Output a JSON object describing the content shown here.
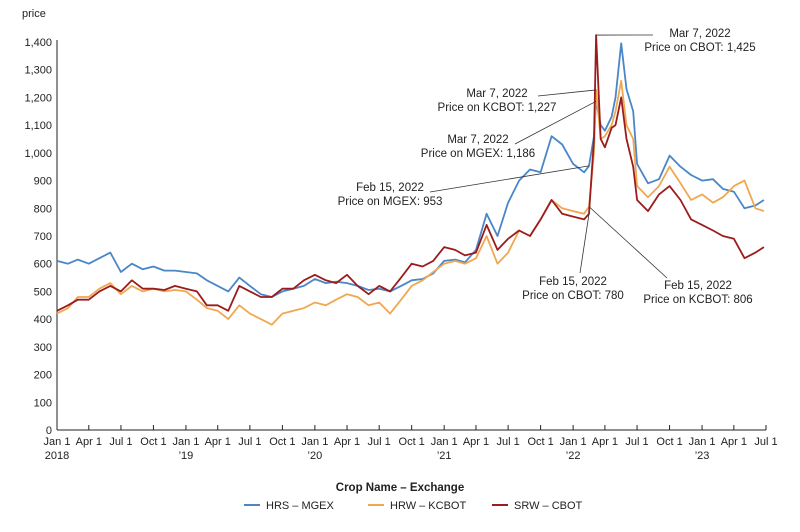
{
  "chart_data": {
    "type": "line",
    "ylabel": "price",
    "ylim": [
      0,
      1400
    ],
    "y_ticks": [
      "0",
      "100",
      "200",
      "300",
      "400",
      "500",
      "600",
      "700",
      "800",
      "900",
      "1,000",
      "1,100",
      "1,200",
      "1,300",
      "1,400"
    ],
    "xlim": [
      "2018-01-01",
      "2023-07-01"
    ],
    "x_ticks": [
      {
        "date": "2018-01-01",
        "label": "Jan 1",
        "year": "2018"
      },
      {
        "date": "2018-04-01",
        "label": "Apr 1",
        "year": ""
      },
      {
        "date": "2018-07-01",
        "label": "Jul 1",
        "year": ""
      },
      {
        "date": "2018-10-01",
        "label": "Oct 1",
        "year": ""
      },
      {
        "date": "2019-01-01",
        "label": "Jan 1",
        "year": "’19"
      },
      {
        "date": "2019-04-01",
        "label": "Apr 1",
        "year": ""
      },
      {
        "date": "2019-07-01",
        "label": "Jul 1",
        "year": ""
      },
      {
        "date": "2019-10-01",
        "label": "Oct 1",
        "year": ""
      },
      {
        "date": "2020-01-01",
        "label": "Jan 1",
        "year": "’20"
      },
      {
        "date": "2020-04-01",
        "label": "Apr 1",
        "year": ""
      },
      {
        "date": "2020-07-01",
        "label": "Jul 1",
        "year": ""
      },
      {
        "date": "2020-10-01",
        "label": "Oct 1",
        "year": ""
      },
      {
        "date": "2021-01-01",
        "label": "Jan 1",
        "year": "’21"
      },
      {
        "date": "2021-04-01",
        "label": "Apr 1",
        "year": ""
      },
      {
        "date": "2021-07-01",
        "label": "Jul 1",
        "year": ""
      },
      {
        "date": "2021-10-01",
        "label": "Oct 1",
        "year": ""
      },
      {
        "date": "2022-01-01",
        "label": "Jan 1",
        "year": "’22"
      },
      {
        "date": "2022-04-01",
        "label": "Apr 1",
        "year": ""
      },
      {
        "date": "2022-07-01",
        "label": "Jul 1",
        "year": ""
      },
      {
        "date": "2022-10-01",
        "label": "Oct 1",
        "year": ""
      },
      {
        "date": "2023-01-01",
        "label": "Jan 1",
        "year": "’23"
      },
      {
        "date": "2023-04-01",
        "label": "Apr 1",
        "year": ""
      },
      {
        "date": "2023-07-01",
        "label": "Jul 1",
        "year": ""
      }
    ],
    "grid": false,
    "legend_title": "Crop Name – Exchange",
    "legend_position": "bottom",
    "series": [
      {
        "name": "HRS – MGEX",
        "color": "#4a86c8",
        "points": [
          [
            "2018-01-01",
            610
          ],
          [
            "2018-02-01",
            600
          ],
          [
            "2018-03-01",
            615
          ],
          [
            "2018-04-01",
            600
          ],
          [
            "2018-05-01",
            620
          ],
          [
            "2018-06-01",
            640
          ],
          [
            "2018-07-01",
            570
          ],
          [
            "2018-08-01",
            600
          ],
          [
            "2018-09-01",
            580
          ],
          [
            "2018-10-01",
            590
          ],
          [
            "2018-11-01",
            575
          ],
          [
            "2018-12-01",
            575
          ],
          [
            "2019-01-01",
            570
          ],
          [
            "2019-02-01",
            565
          ],
          [
            "2019-03-01",
            540
          ],
          [
            "2019-04-01",
            520
          ],
          [
            "2019-05-01",
            500
          ],
          [
            "2019-06-01",
            550
          ],
          [
            "2019-07-01",
            520
          ],
          [
            "2019-08-01",
            490
          ],
          [
            "2019-09-01",
            480
          ],
          [
            "2019-10-01",
            500
          ],
          [
            "2019-11-01",
            510
          ],
          [
            "2019-12-01",
            520
          ],
          [
            "2020-01-01",
            545
          ],
          [
            "2020-02-01",
            530
          ],
          [
            "2020-03-01",
            535
          ],
          [
            "2020-04-01",
            530
          ],
          [
            "2020-05-01",
            520
          ],
          [
            "2020-06-01",
            505
          ],
          [
            "2020-07-01",
            510
          ],
          [
            "2020-08-01",
            500
          ],
          [
            "2020-09-01",
            520
          ],
          [
            "2020-10-01",
            540
          ],
          [
            "2020-11-01",
            545
          ],
          [
            "2020-12-01",
            565
          ],
          [
            "2021-01-01",
            610
          ],
          [
            "2021-02-01",
            615
          ],
          [
            "2021-03-01",
            605
          ],
          [
            "2021-04-01",
            650
          ],
          [
            "2021-05-01",
            780
          ],
          [
            "2021-06-01",
            700
          ],
          [
            "2021-07-01",
            820
          ],
          [
            "2021-08-01",
            900
          ],
          [
            "2021-09-01",
            940
          ],
          [
            "2021-10-01",
            930
          ],
          [
            "2021-11-01",
            1060
          ],
          [
            "2021-12-01",
            1030
          ],
          [
            "2022-01-01",
            960
          ],
          [
            "2022-02-01",
            930
          ],
          [
            "2022-02-15",
            953
          ],
          [
            "2022-03-01",
            1060
          ],
          [
            "2022-03-07",
            1186
          ],
          [
            "2022-03-20",
            1100
          ],
          [
            "2022-04-01",
            1080
          ],
          [
            "2022-04-20",
            1130
          ],
          [
            "2022-05-01",
            1200
          ],
          [
            "2022-05-17",
            1395
          ],
          [
            "2022-06-01",
            1230
          ],
          [
            "2022-06-20",
            1150
          ],
          [
            "2022-07-01",
            960
          ],
          [
            "2022-08-01",
            890
          ],
          [
            "2022-09-01",
            905
          ],
          [
            "2022-10-01",
            990
          ],
          [
            "2022-11-01",
            950
          ],
          [
            "2022-12-01",
            920
          ],
          [
            "2023-01-01",
            900
          ],
          [
            "2023-02-01",
            905
          ],
          [
            "2023-03-01",
            870
          ],
          [
            "2023-04-01",
            860
          ],
          [
            "2023-05-01",
            800
          ],
          [
            "2023-06-01",
            810
          ],
          [
            "2023-06-25",
            830
          ]
        ]
      },
      {
        "name": "HRW – KCBOT",
        "color": "#f0a850",
        "points": [
          [
            "2018-01-01",
            420
          ],
          [
            "2018-02-01",
            440
          ],
          [
            "2018-03-01",
            480
          ],
          [
            "2018-04-01",
            480
          ],
          [
            "2018-05-01",
            510
          ],
          [
            "2018-06-01",
            530
          ],
          [
            "2018-07-01",
            490
          ],
          [
            "2018-08-01",
            520
          ],
          [
            "2018-09-01",
            500
          ],
          [
            "2018-10-01",
            510
          ],
          [
            "2018-11-01",
            500
          ],
          [
            "2018-12-01",
            505
          ],
          [
            "2019-01-01",
            500
          ],
          [
            "2019-02-01",
            470
          ],
          [
            "2019-03-01",
            440
          ],
          [
            "2019-04-01",
            430
          ],
          [
            "2019-05-01",
            400
          ],
          [
            "2019-06-01",
            450
          ],
          [
            "2019-07-01",
            420
          ],
          [
            "2019-08-01",
            400
          ],
          [
            "2019-09-01",
            380
          ],
          [
            "2019-10-01",
            420
          ],
          [
            "2019-11-01",
            430
          ],
          [
            "2019-12-01",
            440
          ],
          [
            "2020-01-01",
            460
          ],
          [
            "2020-02-01",
            450
          ],
          [
            "2020-03-01",
            470
          ],
          [
            "2020-04-01",
            490
          ],
          [
            "2020-05-01",
            480
          ],
          [
            "2020-06-01",
            450
          ],
          [
            "2020-07-01",
            460
          ],
          [
            "2020-08-01",
            420
          ],
          [
            "2020-09-01",
            470
          ],
          [
            "2020-10-01",
            520
          ],
          [
            "2020-11-01",
            540
          ],
          [
            "2020-12-01",
            570
          ],
          [
            "2021-01-01",
            600
          ],
          [
            "2021-02-01",
            610
          ],
          [
            "2021-03-01",
            600
          ],
          [
            "2021-04-01",
            620
          ],
          [
            "2021-05-01",
            700
          ],
          [
            "2021-06-01",
            600
          ],
          [
            "2021-07-01",
            640
          ],
          [
            "2021-08-01",
            720
          ],
          [
            "2021-09-01",
            700
          ],
          [
            "2021-10-01",
            760
          ],
          [
            "2021-11-01",
            830
          ],
          [
            "2021-12-01",
            800
          ],
          [
            "2022-01-01",
            790
          ],
          [
            "2022-02-01",
            780
          ],
          [
            "2022-02-15",
            806
          ],
          [
            "2022-03-01",
            1000
          ],
          [
            "2022-03-07",
            1227
          ],
          [
            "2022-03-20",
            1050
          ],
          [
            "2022-04-01",
            1060
          ],
          [
            "2022-04-20",
            1100
          ],
          [
            "2022-05-01",
            1150
          ],
          [
            "2022-05-17",
            1260
          ],
          [
            "2022-06-01",
            1100
          ],
          [
            "2022-06-20",
            1050
          ],
          [
            "2022-07-01",
            880
          ],
          [
            "2022-08-01",
            840
          ],
          [
            "2022-09-01",
            880
          ],
          [
            "2022-10-01",
            950
          ],
          [
            "2022-11-01",
            890
          ],
          [
            "2022-12-01",
            830
          ],
          [
            "2023-01-01",
            850
          ],
          [
            "2023-02-01",
            820
          ],
          [
            "2023-03-01",
            840
          ],
          [
            "2023-04-01",
            880
          ],
          [
            "2023-05-01",
            900
          ],
          [
            "2023-06-01",
            800
          ],
          [
            "2023-06-25",
            790
          ]
        ]
      },
      {
        "name": "SRW – CBOT",
        "color": "#9b1c1c",
        "points": [
          [
            "2018-01-01",
            430
          ],
          [
            "2018-02-01",
            450
          ],
          [
            "2018-03-01",
            470
          ],
          [
            "2018-04-01",
            470
          ],
          [
            "2018-05-01",
            500
          ],
          [
            "2018-06-01",
            520
          ],
          [
            "2018-07-01",
            500
          ],
          [
            "2018-08-01",
            540
          ],
          [
            "2018-09-01",
            510
          ],
          [
            "2018-10-01",
            510
          ],
          [
            "2018-11-01",
            505
          ],
          [
            "2018-12-01",
            520
          ],
          [
            "2019-01-01",
            510
          ],
          [
            "2019-02-01",
            500
          ],
          [
            "2019-03-01",
            450
          ],
          [
            "2019-04-01",
            450
          ],
          [
            "2019-05-01",
            430
          ],
          [
            "2019-06-01",
            520
          ],
          [
            "2019-07-01",
            500
          ],
          [
            "2019-08-01",
            480
          ],
          [
            "2019-09-01",
            480
          ],
          [
            "2019-10-01",
            510
          ],
          [
            "2019-11-01",
            510
          ],
          [
            "2019-12-01",
            540
          ],
          [
            "2020-01-01",
            560
          ],
          [
            "2020-02-01",
            540
          ],
          [
            "2020-03-01",
            530
          ],
          [
            "2020-04-01",
            560
          ],
          [
            "2020-05-01",
            520
          ],
          [
            "2020-06-01",
            490
          ],
          [
            "2020-07-01",
            520
          ],
          [
            "2020-08-01",
            500
          ],
          [
            "2020-09-01",
            550
          ],
          [
            "2020-10-01",
            600
          ],
          [
            "2020-11-01",
            590
          ],
          [
            "2020-12-01",
            610
          ],
          [
            "2021-01-01",
            660
          ],
          [
            "2021-02-01",
            650
          ],
          [
            "2021-03-01",
            630
          ],
          [
            "2021-04-01",
            640
          ],
          [
            "2021-05-01",
            740
          ],
          [
            "2021-06-01",
            650
          ],
          [
            "2021-07-01",
            690
          ],
          [
            "2021-08-01",
            720
          ],
          [
            "2021-09-01",
            700
          ],
          [
            "2021-10-01",
            760
          ],
          [
            "2021-11-01",
            830
          ],
          [
            "2021-12-01",
            780
          ],
          [
            "2022-01-01",
            770
          ],
          [
            "2022-02-01",
            760
          ],
          [
            "2022-02-15",
            780
          ],
          [
            "2022-03-01",
            1050
          ],
          [
            "2022-03-07",
            1425
          ],
          [
            "2022-03-20",
            1050
          ],
          [
            "2022-04-01",
            1020
          ],
          [
            "2022-04-20",
            1090
          ],
          [
            "2022-05-01",
            1100
          ],
          [
            "2022-05-17",
            1200
          ],
          [
            "2022-06-01",
            1050
          ],
          [
            "2022-06-20",
            950
          ],
          [
            "2022-07-01",
            830
          ],
          [
            "2022-08-01",
            790
          ],
          [
            "2022-09-01",
            850
          ],
          [
            "2022-10-01",
            880
          ],
          [
            "2022-11-01",
            830
          ],
          [
            "2022-12-01",
            760
          ],
          [
            "2023-01-01",
            740
          ],
          [
            "2023-02-01",
            720
          ],
          [
            "2023-03-01",
            700
          ],
          [
            "2023-04-01",
            690
          ],
          [
            "2023-05-01",
            620
          ],
          [
            "2023-06-01",
            640
          ],
          [
            "2023-06-25",
            660
          ]
        ]
      }
    ],
    "annotations": [
      {
        "series": 2,
        "date": "2022-03-07",
        "line1": "Mar 7, 2022",
        "line2": "Price on CBOT: 1,425"
      },
      {
        "series": 1,
        "date": "2022-03-07",
        "line1": "Mar 7, 2022",
        "line2": "Price on KCBOT: 1,227"
      },
      {
        "series": 0,
        "date": "2022-03-07",
        "line1": "Mar 7, 2022",
        "line2": "Price on MGEX: 1,186"
      },
      {
        "series": 0,
        "date": "2022-02-15",
        "line1": "Feb 15, 2022",
        "line2": "Price on MGEX: 953"
      },
      {
        "series": 2,
        "date": "2022-02-15",
        "line1": "Feb 15, 2022",
        "line2": "Price on CBOT: 780"
      },
      {
        "series": 1,
        "date": "2022-02-15",
        "line1": "Feb 15, 2022",
        "line2": "Price on KCBOT: 806"
      }
    ]
  }
}
